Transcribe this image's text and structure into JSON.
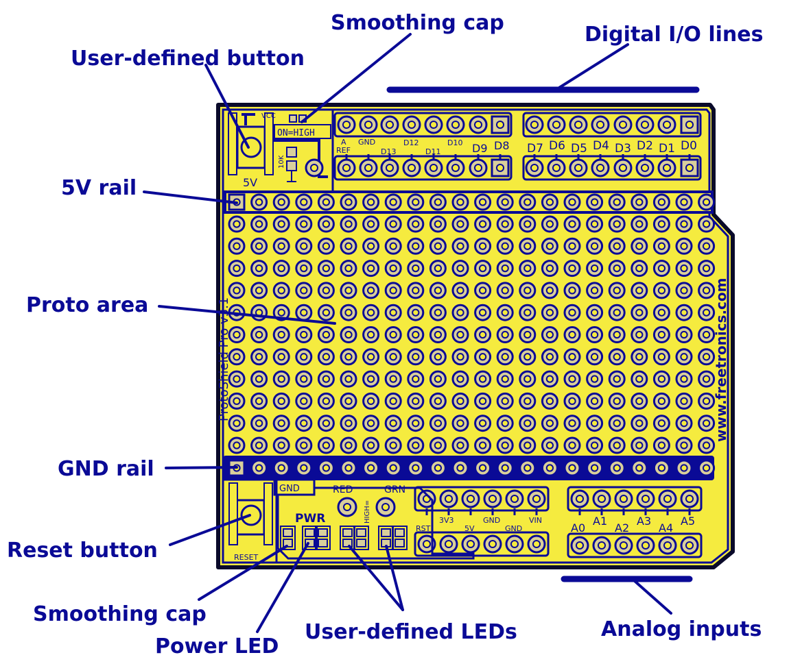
{
  "colors": {
    "board": "#f5eb3f",
    "ink": "#0a0a96",
    "outline": "#0a0a2a",
    "pad": "#d9cf9b",
    "background": "#ffffff"
  },
  "callouts": {
    "smoothing_cap_top": "Smoothing cap",
    "digital_io": "Digital I/O lines",
    "user_button": "User-defined button",
    "rail_5v": "5V rail",
    "proto_area": "Proto area",
    "gnd_rail": "GND rail",
    "reset_button": "Reset button",
    "smoothing_cap_bottom": "Smoothing cap",
    "power_led": "Power LED",
    "user_leds": "User-defined LEDs",
    "analog_inputs": "Analog inputs"
  },
  "silkscreen": {
    "vcc": "VCC",
    "five_v": "5V",
    "on_high": "ON=HIGH",
    "ten_k": "10K",
    "a_ref_top": "A",
    "a_ref_bottom": "REF",
    "gnd_top": "GND",
    "d13": "D13",
    "d12": "D12",
    "d11": "D11",
    "d10": "D10",
    "d9": "D9",
    "d8": "D8",
    "d7": "D7",
    "d6": "D6",
    "d5": "D5",
    "d4": "D4",
    "d3": "D3",
    "d2": "D2",
    "d1": "D1",
    "d0": "D0",
    "version": "ProtoShield Pro v3.1",
    "website": "www.freetronics.com",
    "gnd_box": "GND",
    "red": "RED",
    "grn": "GRN",
    "high_eq": "HIGH=",
    "pwr": "PWR",
    "reset": "RESET",
    "rst": "RST",
    "v33": "3V3",
    "v5": "5V",
    "gnd1": "GND",
    "gnd2": "GND",
    "vin": "VIN",
    "a0": "A0",
    "a1": "A1",
    "a2": "A2",
    "a3": "A3",
    "a4": "A4",
    "a5": "A5"
  }
}
